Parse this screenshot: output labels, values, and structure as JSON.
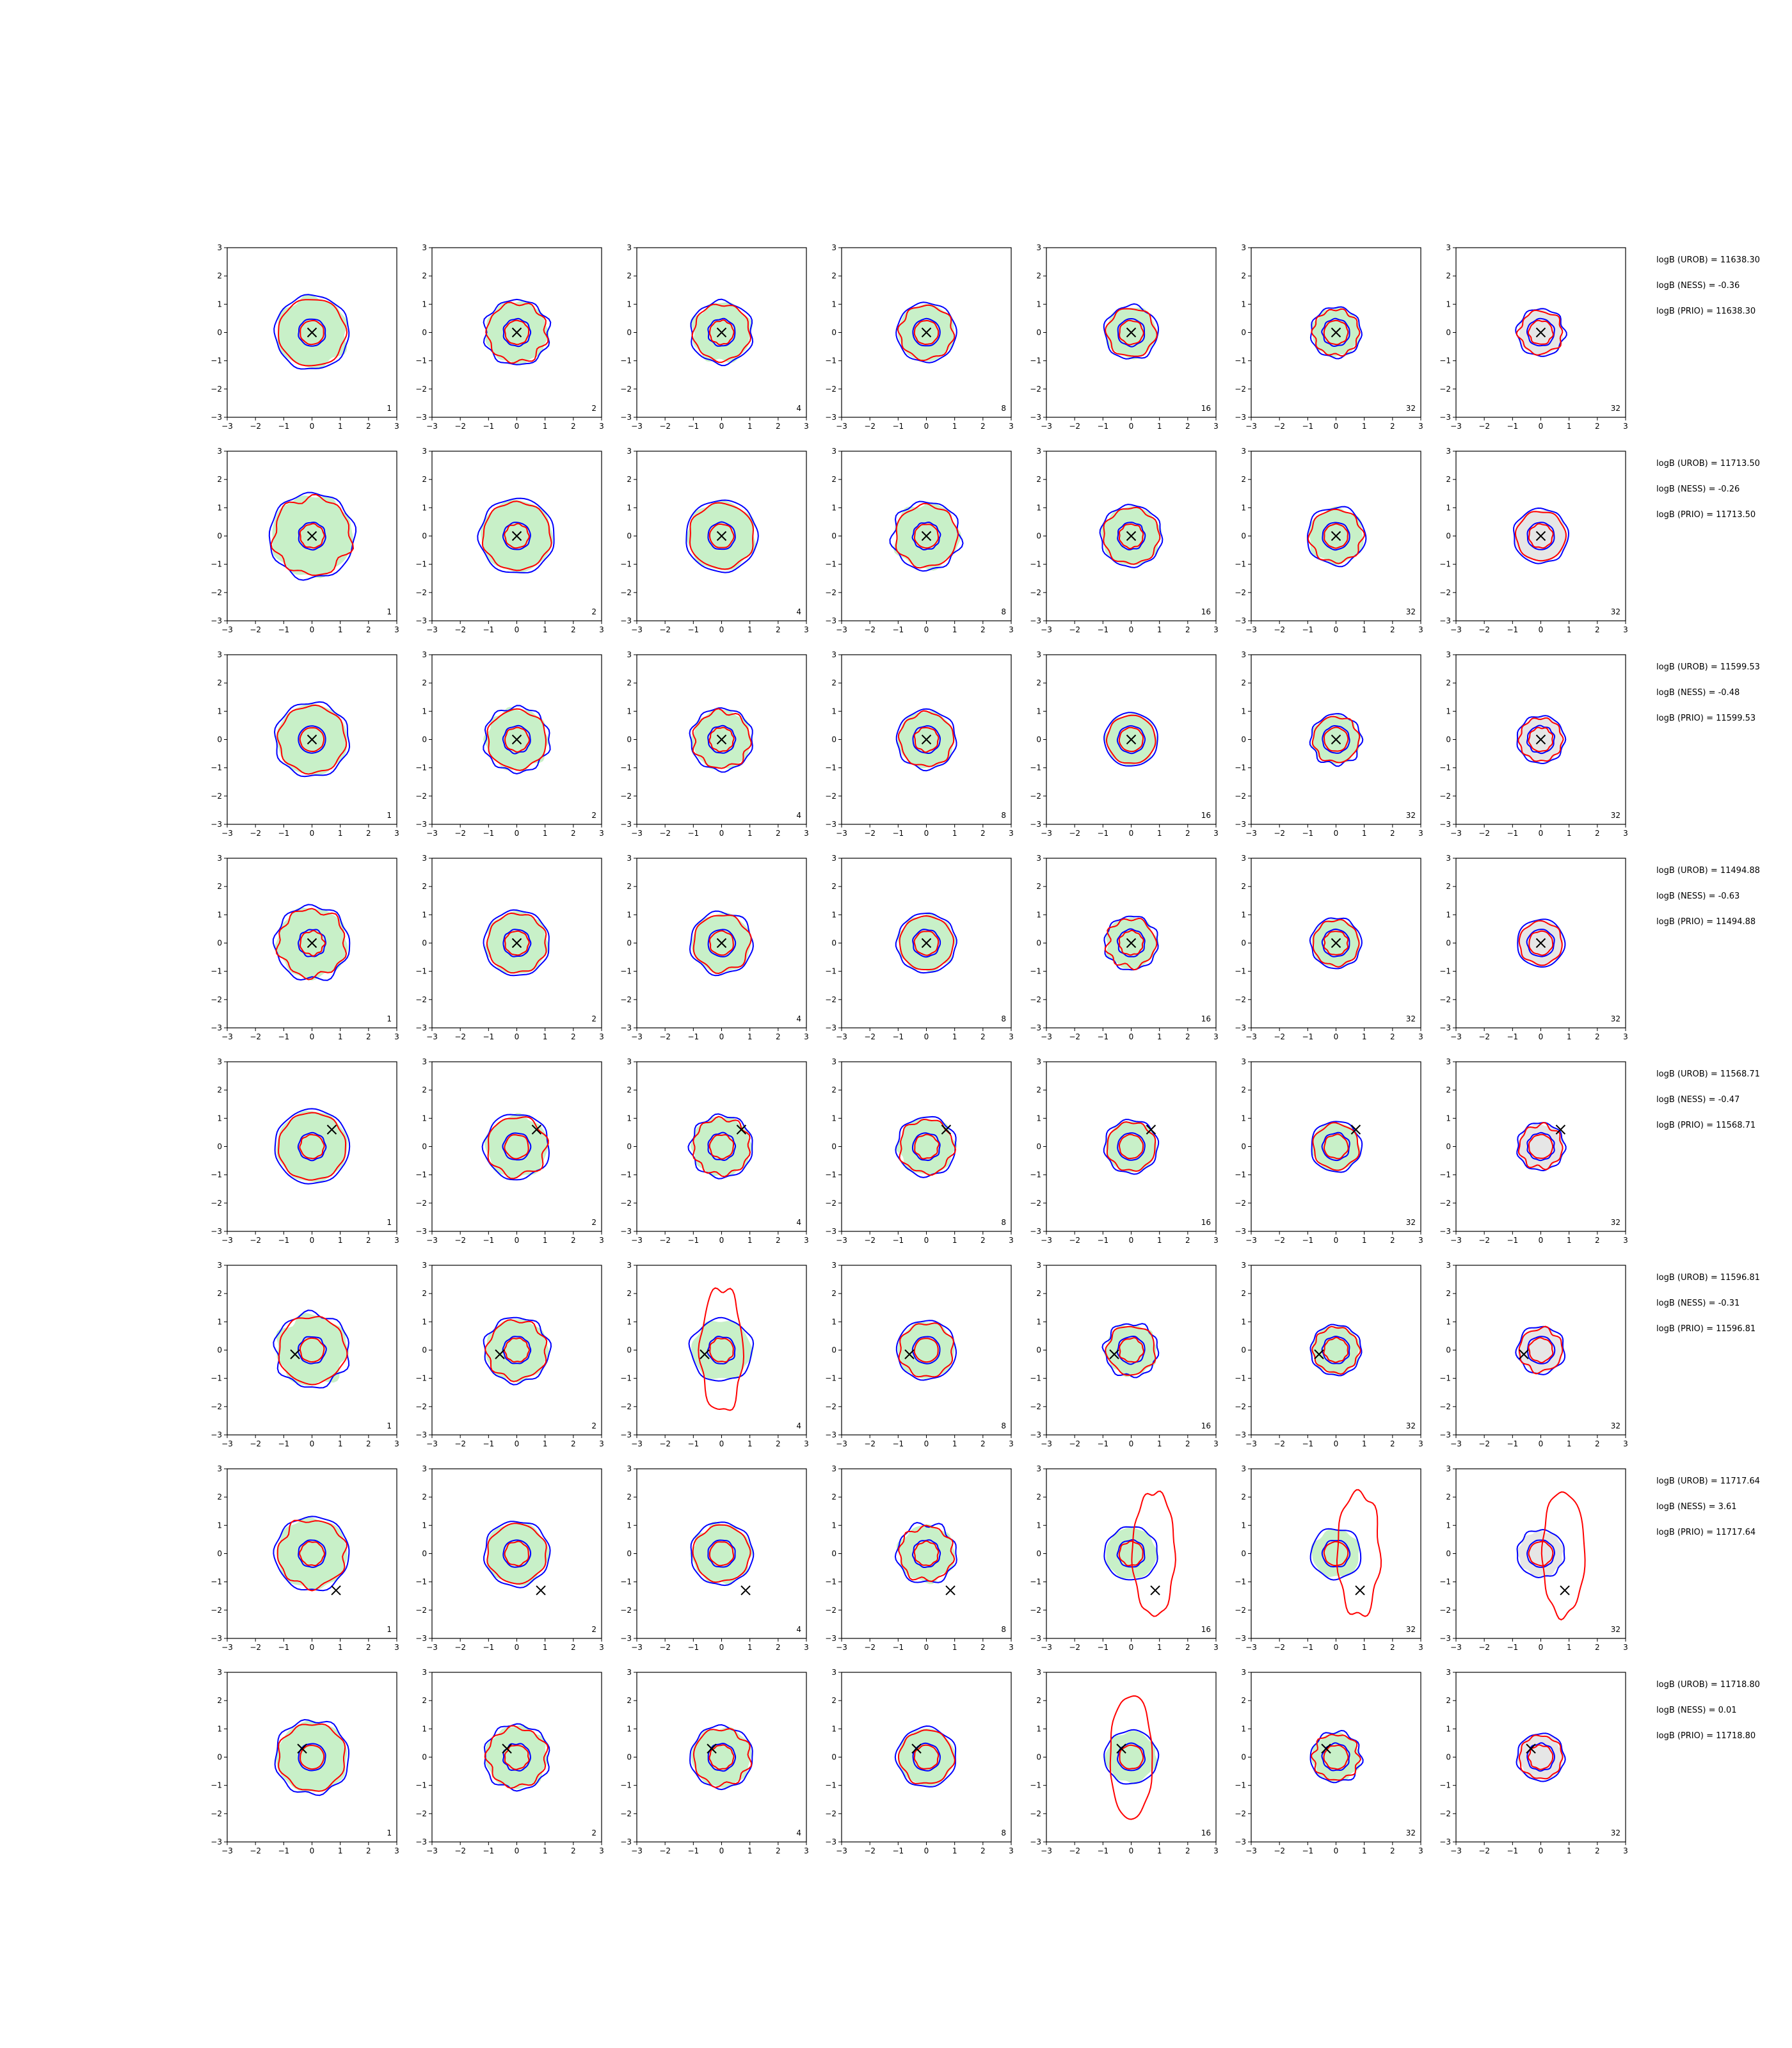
{
  "chart_data": {
    "type": "contour-grid",
    "rows": 8,
    "cols": 7,
    "xlim": [
      -3,
      3
    ],
    "ylim": [
      -3,
      3
    ],
    "xticks": [
      "−3",
      "−2",
      "−1",
      "0",
      "1",
      "2",
      "3"
    ],
    "yticks": [
      "3",
      "2",
      "1",
      "0",
      "−1",
      "−2",
      "−3"
    ],
    "column_labels": [
      "1",
      "2",
      "4",
      "8",
      "16",
      "32",
      "32"
    ],
    "colors": {
      "fill_green": "#c8f0c8",
      "fill_gray": "#e6e6e6",
      "contour_blue": "#0000ff",
      "contour_red": "#ff0000",
      "marker": "#000000"
    },
    "markers": [
      {
        "x": 0.0,
        "y": 0.0
      },
      {
        "x": 0.0,
        "y": 0.0
      },
      {
        "x": 0.0,
        "y": 0.0
      },
      {
        "x": 0.0,
        "y": 0.0
      },
      {
        "x": 0.7,
        "y": 0.6
      },
      {
        "x": -0.6,
        "y": -0.15
      },
      {
        "x": 0.85,
        "y": -1.3
      },
      {
        "x": -0.35,
        "y": 0.3
      }
    ],
    "annotations": [
      {
        "urob": "logB (UROB) = 11638.30",
        "ness": "logB (NESS) = -0.36",
        "prio": "logB (PRIO) = 11638.30"
      },
      {
        "urob": "logB (UROB) = 11713.50",
        "ness": "logB (NESS) = -0.26",
        "prio": "logB (PRIO) = 11713.50"
      },
      {
        "urob": "logB (UROB) = 11599.53",
        "ness": "logB (NESS) = -0.48",
        "prio": "logB (PRIO) = 11599.53"
      },
      {
        "urob": "logB (UROB) = 11494.88",
        "ness": "logB (NESS) = -0.63",
        "prio": "logB (PRIO) = 11494.88"
      },
      {
        "urob": "logB (UROB) = 11568.71",
        "ness": "logB (NESS) = -0.47",
        "prio": "logB (PRIO) = 11568.71"
      },
      {
        "urob": "logB (UROB) = 11596.81",
        "ness": "logB (NESS) = -0.31",
        "prio": "logB (PRIO) = 11596.81"
      },
      {
        "urob": "logB (UROB) = 11717.64",
        "ness": "logB (NESS) = 3.61",
        "prio": "logB (PRIO) = 11717.64"
      },
      {
        "urob": "logB (UROB) = 11718.80",
        "ness": "logB (NESS) = 0.01",
        "prio": "logB (PRIO) = 11718.80"
      }
    ]
  }
}
